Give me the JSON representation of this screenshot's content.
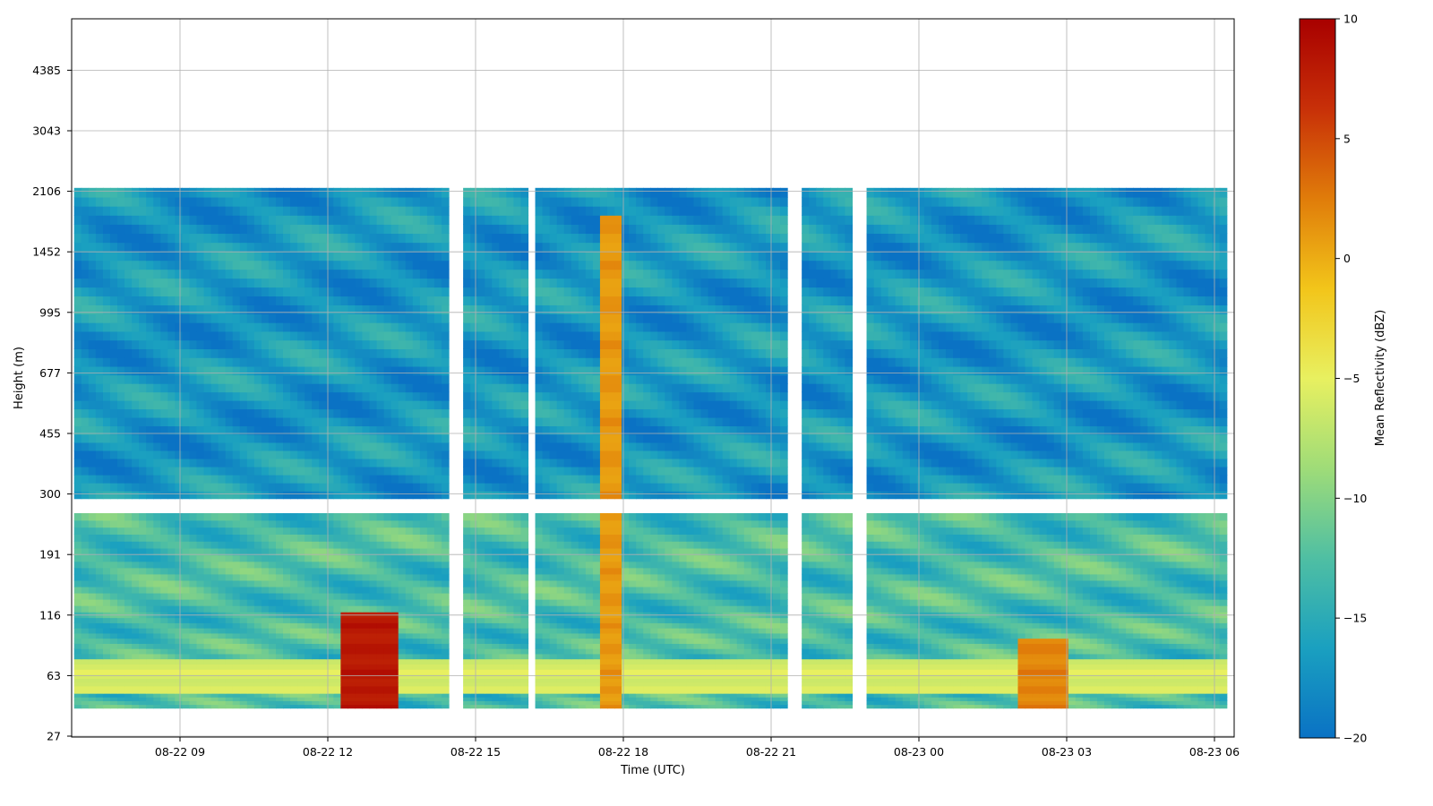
{
  "chart_data": {
    "type": "heatmap",
    "title": "",
    "xlabel": "Time (UTC)",
    "ylabel": "Height (m)",
    "x_tick_labels": [
      "08-22 09",
      "08-22 12",
      "08-22 15",
      "08-22 18",
      "08-22 21",
      "08-23 00",
      "08-23 03",
      "08-23 06"
    ],
    "x_tick_hours": [
      9,
      12,
      15,
      18,
      21,
      24,
      27,
      30
    ],
    "xlim_hours": [
      6.8,
      30.4
    ],
    "y_tick_labels": [
      "27",
      "63",
      "116",
      "191",
      "300",
      "455",
      "677",
      "995",
      "1452",
      "2106",
      "3043",
      "4385"
    ],
    "y_tick_values": [
      27,
      63,
      116,
      191,
      300,
      455,
      677,
      995,
      1452,
      2106,
      3043,
      4385
    ],
    "ylim": [
      25,
      6200
    ],
    "y_scale": "quasi-log (ticks evenly spaced)",
    "grid": true,
    "colorbar": {
      "label": "Mean Reflectivity (dBZ)",
      "tick_labels": [
        "10",
        "5",
        "0",
        "−5",
        "−10",
        "−15",
        "−20"
      ],
      "tick_values": [
        10,
        5,
        0,
        -5,
        -10,
        -15,
        -20
      ],
      "range": [
        -20,
        10
      ],
      "colormap": [
        "#0a72c4",
        "#1aa0c0",
        "#4fbfa3",
        "#9fdc78",
        "#e8f060",
        "#f2c51a",
        "#e07c0a",
        "#c83008",
        "#a80000"
      ]
    },
    "features": [
      {
        "hours": [
          6.85,
          30.25
        ],
        "heights_m": [
          40,
          260
        ],
        "dBZ": -13,
        "note": "lower gate range"
      },
      {
        "hours": [
          6.85,
          30.25
        ],
        "heights_m": [
          290,
          2150
        ],
        "dBZ": -17,
        "note": "upper gate range"
      },
      {
        "hours": [
          12.2,
          13.4
        ],
        "heights_m": [
          40,
          120
        ],
        "dBZ": 9,
        "note": "strong echo near 12 UTC"
      },
      {
        "hours": [
          17.5,
          17.9
        ],
        "heights_m": [
          40,
          1800
        ],
        "dBZ": 2,
        "note": "vertical streak near 18 UTC"
      },
      {
        "hours": [
          26.0,
          27.0
        ],
        "heights_m": [
          40,
          90
        ],
        "dBZ": 3,
        "note": "echo near 02 UTC"
      },
      {
        "hours": [
          6.85,
          30.25
        ],
        "heights_m": [
          50,
          75
        ],
        "dBZ": -5,
        "note": "near-surface band"
      }
    ],
    "gaps_hours": [
      [
        14.5,
        14.75
      ],
      [
        16.0,
        16.2
      ],
      [
        21.3,
        21.6
      ],
      [
        22.7,
        22.9
      ]
    ]
  }
}
